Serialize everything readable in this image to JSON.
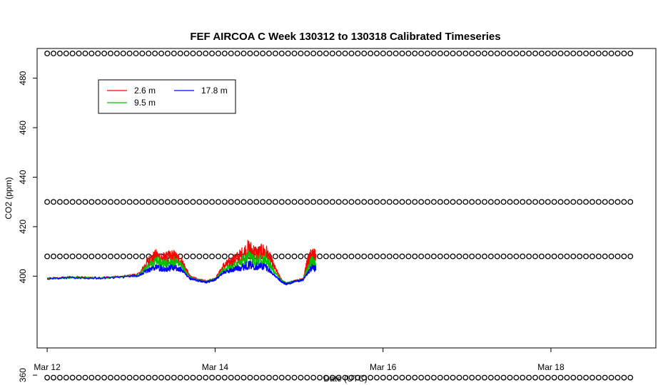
{
  "chart_data": {
    "type": "line",
    "title": "FEF AIRCOA C  Week 130312 to 130318  Calibrated Timeseries",
    "xlabel": "Date (UTC)",
    "ylabel": "CO2 (ppm)",
    "xlim": [
      -0.12,
      7.25
    ],
    "ylim": [
      371,
      492
    ],
    "x_unit": "days from Mar 12 00:00 UTC",
    "xticks": [
      {
        "value": 0,
        "label": "Mar 12"
      },
      {
        "value": 2,
        "label": "Mar 14"
      },
      {
        "value": 4,
        "label": "Mar 16"
      },
      {
        "value": 6,
        "label": "Mar 18"
      }
    ],
    "yticks": [
      {
        "value": 360,
        "label": "360"
      },
      {
        "value": 400,
        "label": "400"
      },
      {
        "value": 420,
        "label": "420"
      },
      {
        "value": 440,
        "label": "440"
      },
      {
        "value": 460,
        "label": "460"
      },
      {
        "value": 480,
        "label": "480"
      }
    ],
    "legend": {
      "position": "top-left",
      "entries": [
        "2.6 m",
        "9.5 m",
        "17.8 m"
      ]
    },
    "series": [
      {
        "name": "2.6 m",
        "color": "#ff0000",
        "x": [
          0,
          0.3,
          0.6,
          0.9,
          1.1,
          1.2,
          1.3,
          1.4,
          1.5,
          1.6,
          1.7,
          1.8,
          1.9,
          2.0,
          2.1,
          2.2,
          2.3,
          2.4,
          2.5,
          2.6,
          2.7,
          2.8,
          2.85,
          2.95,
          3.05,
          3.1,
          3.15,
          3.2
        ],
        "y": [
          399,
          399.6,
          399.4,
          399.8,
          401,
          406,
          408,
          407,
          408,
          406,
          400,
          398.5,
          398,
          399,
          404,
          406,
          408,
          411,
          409,
          410,
          404,
          398,
          397,
          398,
          399,
          406,
          409,
          408
        ]
      },
      {
        "name": "9.5 m",
        "color": "#00c000",
        "x": [
          0,
          0.3,
          0.6,
          0.9,
          1.1,
          1.2,
          1.3,
          1.4,
          1.5,
          1.6,
          1.7,
          1.8,
          1.9,
          2.0,
          2.1,
          2.2,
          2.3,
          2.4,
          2.5,
          2.6,
          2.7,
          2.8,
          2.85,
          2.95,
          3.05,
          3.1,
          3.15,
          3.2
        ],
        "y": [
          399,
          399.5,
          399.3,
          399.7,
          400.6,
          404,
          406,
          405,
          406,
          404,
          399.5,
          398.3,
          397.8,
          398.8,
          402.5,
          404,
          405.5,
          407.5,
          406.5,
          407,
          402,
          398,
          397,
          398,
          398.8,
          403,
          406,
          405
        ]
      },
      {
        "name": "17.8 m",
        "color": "#0000ff",
        "x": [
          0,
          0.3,
          0.6,
          0.9,
          1.1,
          1.2,
          1.3,
          1.4,
          1.5,
          1.6,
          1.7,
          1.8,
          1.9,
          2.0,
          2.1,
          2.2,
          2.3,
          2.4,
          2.5,
          2.6,
          2.7,
          2.8,
          2.85,
          2.95,
          3.05,
          3.1,
          3.15,
          3.2
        ],
        "y": [
          399,
          399.4,
          399.2,
          399.6,
          400.3,
          402.5,
          403.5,
          403,
          403.5,
          402.5,
          399,
          398.2,
          397.6,
          398.5,
          401.5,
          402.5,
          403.5,
          404.5,
          404,
          404,
          400.5,
          397.5,
          396.8,
          397.8,
          398.5,
          401,
          403.5,
          403
        ]
      },
      {
        "name": "",
        "type": "scatter",
        "marker": "circle-open",
        "color": "#000000",
        "y_levels": [
          490,
          430,
          408,
          359
        ],
        "x_range": [
          0,
          7.0
        ]
      }
    ]
  }
}
